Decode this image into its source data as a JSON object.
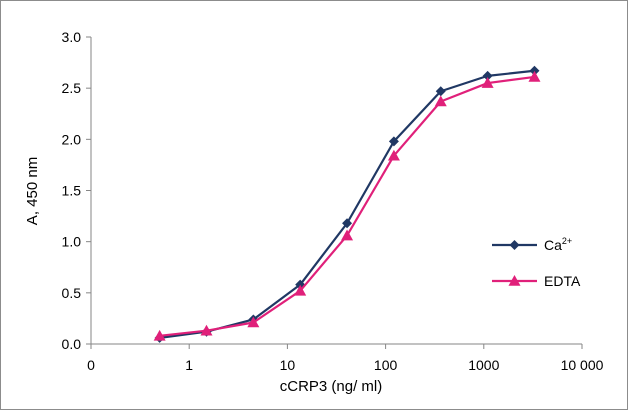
{
  "chart_data": {
    "type": "line",
    "title": "",
    "xlabel": "cCRP3 (ng/ ml)",
    "ylabel": "A, 450 nm",
    "x_scale": "log",
    "xlim": [
      0.1,
      10000
    ],
    "ylim": [
      0,
      3
    ],
    "x_tick_values": [
      0.1,
      1,
      10,
      100,
      1000,
      10000
    ],
    "x_tick_labels": [
      "0",
      "1",
      "10",
      "100",
      "1000",
      "10 000"
    ],
    "y_tick_values": [
      0,
      0.5,
      1,
      1.5,
      2,
      2.5,
      3
    ],
    "y_tick_labels": [
      "0.0",
      "0.5",
      "1.0",
      "1.5",
      "2.0",
      "2.5",
      "3.0"
    ],
    "grid": false,
    "legend_position": "right",
    "series": [
      {
        "name": "Ca",
        "name_superscript": "2+",
        "color": "#203864",
        "marker": "diamond",
        "x": [
          0.5,
          1.5,
          4.5,
          13.5,
          40.5,
          121.5,
          364.5,
          1093.5,
          3280.5
        ],
        "y": [
          0.06,
          0.12,
          0.24,
          0.58,
          1.18,
          1.98,
          2.47,
          2.62,
          2.67
        ]
      },
      {
        "name": "EDTA",
        "color": "#e0207a",
        "marker": "triangle",
        "x": [
          0.5,
          1.5,
          4.5,
          13.5,
          40.5,
          121.5,
          364.5,
          1093.5,
          3280.5
        ],
        "y": [
          0.08,
          0.13,
          0.21,
          0.52,
          1.06,
          1.84,
          2.37,
          2.55,
          2.61
        ]
      }
    ]
  }
}
